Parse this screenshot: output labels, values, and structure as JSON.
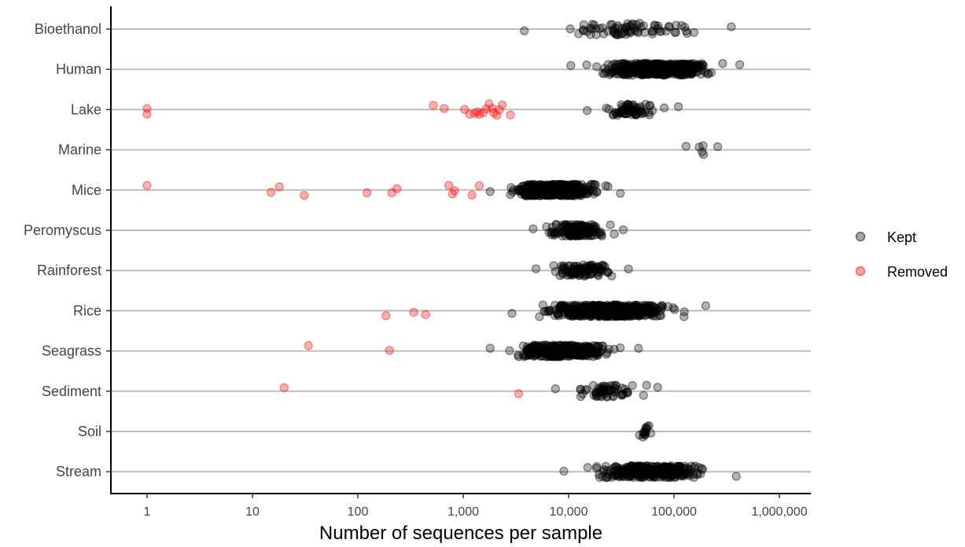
{
  "chart_data": {
    "type": "scatter",
    "title": "",
    "xlabel": "Number of sequences per sample",
    "ylabel": "",
    "x_scale": "log10",
    "xlim": [
      0.5,
      1500000
    ],
    "x_ticks": [
      1,
      10,
      100,
      1000,
      10000,
      100000,
      1000000
    ],
    "x_tick_labels": [
      "1",
      "10",
      "100",
      "1,000",
      "10,000",
      "100,000",
      "1,000,000"
    ],
    "categories": [
      "Bioethanol",
      "Human",
      "Lake",
      "Marine",
      "Mice",
      "Peromyscus",
      "Rainforest",
      "Rice",
      "Seagrass",
      "Sediment",
      "Soil",
      "Stream"
    ],
    "grid": "horizontal",
    "legend_position": "right",
    "series": [
      {
        "name": "Kept",
        "color": "#000000",
        "groups": {
          "Bioethanol": {
            "range": [
              3800,
              350000
            ],
            "n": 75
          },
          "Human": {
            "range": [
              10500,
              420000
            ],
            "n": 480
          },
          "Lake": {
            "range": [
              15000,
              110000
            ],
            "n": 65
          },
          "Marine": {
            "range": [
              130000,
              260000
            ],
            "n": 6
          },
          "Mice": {
            "range": [
              1800,
              31000
            ],
            "n": 420
          },
          "Peromyscus": {
            "range": [
              4600,
              33000
            ],
            "n": 170
          },
          "Rainforest": {
            "range": [
              4900,
              37000
            ],
            "n": 95
          },
          "Rice": {
            "range": [
              2900,
              200000
            ],
            "n": 520
          },
          "Seagrass": {
            "range": [
              1800,
              46000
            ],
            "n": 320
          },
          "Sediment": {
            "range": [
              7500,
              70000
            ],
            "n": 60
          },
          "Soil": {
            "range": [
              47000,
              60000
            ],
            "n": 14
          },
          "Stream": {
            "range": [
              9000,
              390000
            ],
            "n": 300
          }
        }
      },
      {
        "name": "Removed",
        "color": "#ff0000",
        "points": [
          {
            "category": "Lake",
            "x": 1
          },
          {
            "category": "Lake",
            "x": 1
          },
          {
            "category": "Lake",
            "x": 520
          },
          {
            "category": "Lake",
            "x": 660
          },
          {
            "category": "Lake",
            "x": 1030
          },
          {
            "category": "Lake",
            "x": 1150
          },
          {
            "category": "Lake",
            "x": 1280
          },
          {
            "category": "Lake",
            "x": 1360
          },
          {
            "category": "Lake",
            "x": 1420
          },
          {
            "category": "Lake",
            "x": 1550
          },
          {
            "category": "Lake",
            "x": 1650
          },
          {
            "category": "Lake",
            "x": 1760
          },
          {
            "category": "Lake",
            "x": 1880
          },
          {
            "category": "Lake",
            "x": 1950
          },
          {
            "category": "Lake",
            "x": 2080
          },
          {
            "category": "Lake",
            "x": 2200
          },
          {
            "category": "Lake",
            "x": 2350
          },
          {
            "category": "Lake",
            "x": 2800
          },
          {
            "category": "Mice",
            "x": 1
          },
          {
            "category": "Mice",
            "x": 15
          },
          {
            "category": "Mice",
            "x": 18
          },
          {
            "category": "Mice",
            "x": 31
          },
          {
            "category": "Mice",
            "x": 122
          },
          {
            "category": "Mice",
            "x": 210
          },
          {
            "category": "Mice",
            "x": 235
          },
          {
            "category": "Mice",
            "x": 730
          },
          {
            "category": "Mice",
            "x": 790
          },
          {
            "category": "Mice",
            "x": 830
          },
          {
            "category": "Mice",
            "x": 1210
          },
          {
            "category": "Mice",
            "x": 1420
          },
          {
            "category": "Rice",
            "x": 185
          },
          {
            "category": "Rice",
            "x": 340
          },
          {
            "category": "Rice",
            "x": 440
          },
          {
            "category": "Seagrass",
            "x": 34
          },
          {
            "category": "Seagrass",
            "x": 200
          },
          {
            "category": "Sediment",
            "x": 20
          },
          {
            "category": "Sediment",
            "x": 3350
          }
        ]
      }
    ]
  }
}
